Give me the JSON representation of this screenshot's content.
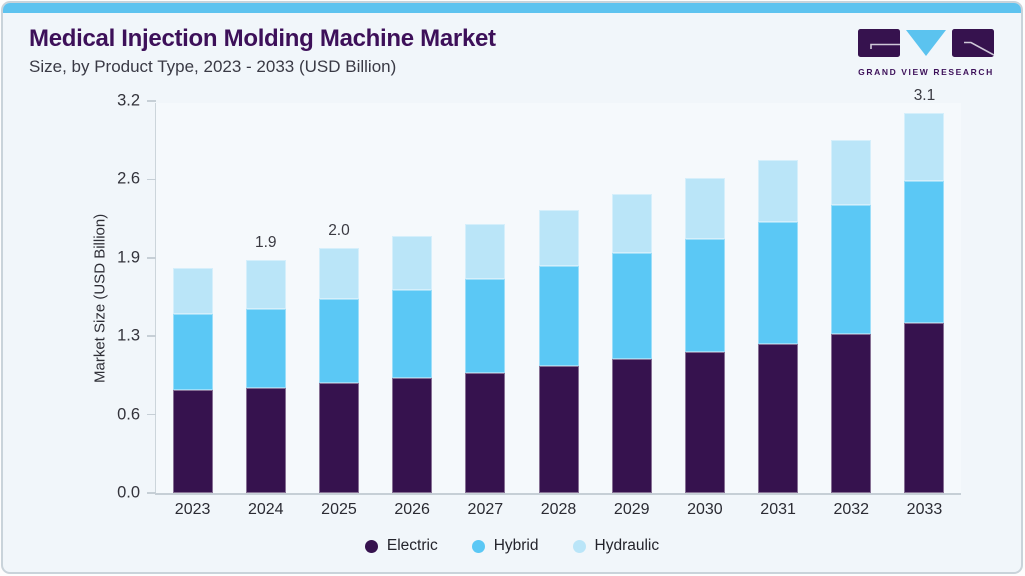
{
  "header": {
    "title": "Medical Injection Molding Machine Market",
    "subtitle": "Size, by Product Type, 2023 - 2033 (USD Billion)",
    "logo_text": "GRAND VIEW RESEARCH"
  },
  "colors": {
    "accent_bar": "#5EC3EF",
    "title_text": "#3D1059",
    "electric": "#36124E",
    "hybrid": "#5BC8F5",
    "hydraulic": "#BAE5F8",
    "axis_line": "#C6CFD6",
    "card_background": "#F1F6FA"
  },
  "chart_data": {
    "type": "bar",
    "stacked": true,
    "title": "Medical Injection Molding Machine Market Size, by Product Type, 2023 - 2033 (USD Billion)",
    "xlabel": "",
    "ylabel": "Market Size (USD Billion)",
    "ylim": [
      0,
      3.2
    ],
    "grid": false,
    "legend_position": "bottom",
    "yticks": [
      {
        "label": "0.0",
        "value": 0.0
      },
      {
        "label": "0.6",
        "value": 0.64
      },
      {
        "label": "1.3",
        "value": 1.28
      },
      {
        "label": "1.9",
        "value": 1.92
      },
      {
        "label": "2.6",
        "value": 2.56
      },
      {
        "label": "3.2",
        "value": 3.2
      }
    ],
    "categories": [
      "2023",
      "2024",
      "2025",
      "2026",
      "2027",
      "2028",
      "2029",
      "2030",
      "2031",
      "2032",
      "2033"
    ],
    "series": [
      {
        "name": "Electric",
        "color": "#36124E",
        "values": [
          0.84,
          0.86,
          0.9,
          0.94,
          0.98,
          1.04,
          1.09,
          1.15,
          1.22,
          1.3,
          1.39
        ]
      },
      {
        "name": "Hybrid",
        "color": "#5BC8F5",
        "values": [
          0.62,
          0.64,
          0.68,
          0.72,
          0.77,
          0.81,
          0.87,
          0.92,
          0.99,
          1.05,
          1.16
        ]
      },
      {
        "name": "Hydraulic",
        "color": "#BAE5F8",
        "values": [
          0.38,
          0.4,
          0.42,
          0.44,
          0.45,
          0.46,
          0.48,
          0.5,
          0.51,
          0.53,
          0.55
        ]
      }
    ],
    "totals": [
      1.84,
      1.9,
      2.0,
      2.1,
      2.2,
      2.31,
      2.44,
      2.57,
      2.72,
      2.88,
      3.1
    ],
    "total_labels": [
      "",
      "1.9",
      "2.0",
      "",
      "",
      "",
      "",
      "",
      "",
      "",
      "3.1"
    ]
  }
}
